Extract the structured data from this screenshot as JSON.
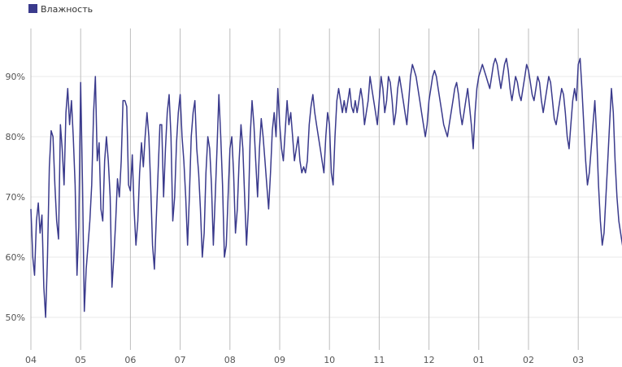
{
  "chart_data": {
    "type": "line",
    "legend": {
      "position": "top-left"
    },
    "grid": {
      "horizontal": true,
      "vertical": true
    },
    "x_ticks": [
      "04",
      "05",
      "06",
      "07",
      "08",
      "09",
      "10",
      "11",
      "12",
      "01",
      "02",
      "03"
    ],
    "ylim": [
      44,
      98
    ],
    "y_ticks": [
      50,
      60,
      70,
      80,
      90
    ],
    "y_tick_labels": [
      "50%",
      "60%",
      "70%",
      "80%",
      "90%"
    ],
    "series": [
      {
        "name": "Влажность",
        "color": "#3a3a8c",
        "x_range": [
          0,
          12.0
        ],
        "values": [
          68,
          60,
          57,
          66,
          69,
          64,
          67,
          55,
          50,
          60,
          75,
          81,
          80,
          72,
          66,
          63,
          82,
          78,
          72,
          84,
          88,
          82,
          86,
          80,
          72,
          57,
          65,
          89,
          72,
          51,
          58,
          62,
          66,
          72,
          84,
          90,
          76,
          79,
          68,
          66,
          76,
          80,
          76,
          70,
          55,
          60,
          66,
          73,
          70,
          76,
          86,
          86,
          85,
          72,
          71,
          77,
          68,
          62,
          66,
          74,
          79,
          75,
          80,
          84,
          80,
          72,
          62,
          58,
          66,
          74,
          82,
          82,
          70,
          78,
          84,
          87,
          80,
          66,
          70,
          79,
          84,
          87,
          80,
          76,
          70,
          62,
          70,
          80,
          84,
          86,
          78,
          74,
          68,
          60,
          64,
          74,
          80,
          78,
          72,
          62,
          70,
          78,
          87,
          80,
          72,
          60,
          62,
          70,
          78,
          80,
          74,
          64,
          68,
          76,
          82,
          78,
          70,
          62,
          68,
          80,
          86,
          82,
          76,
          70,
          78,
          83,
          80,
          76,
          72,
          68,
          74,
          81,
          84,
          80,
          88,
          82,
          78,
          76,
          81,
          86,
          82,
          84,
          80,
          76,
          78,
          80,
          76,
          74,
          75,
          74,
          76,
          82,
          85,
          87,
          84,
          82,
          80,
          78,
          76,
          74,
          80,
          84,
          82,
          74,
          72,
          80,
          86,
          88,
          86,
          84,
          86,
          84,
          86,
          88,
          85,
          84,
          86,
          84,
          86,
          88,
          86,
          82,
          84,
          86,
          90,
          88,
          86,
          84,
          82,
          86,
          90,
          88,
          84,
          86,
          90,
          89,
          86,
          82,
          84,
          88,
          90,
          88,
          86,
          84,
          82,
          86,
          90,
          92,
          91,
          90,
          88,
          86,
          84,
          82,
          80,
          82,
          86,
          88,
          90,
          91,
          90,
          88,
          86,
          84,
          82,
          81,
          80,
          82,
          84,
          86,
          88,
          89,
          87,
          84,
          82,
          84,
          86,
          88,
          85,
          82,
          78,
          84,
          88,
          90,
          91,
          92,
          91,
          90,
          89,
          88,
          90,
          92,
          93,
          92,
          90,
          88,
          90,
          92,
          93,
          91,
          88,
          86,
          88,
          90,
          89,
          87,
          86,
          88,
          90,
          92,
          91,
          89,
          87,
          86,
          88,
          90,
          89,
          86,
          84,
          86,
          88,
          90,
          89,
          86,
          83,
          82,
          84,
          86,
          88,
          87,
          84,
          80,
          78,
          82,
          86,
          88,
          86,
          92,
          93,
          88,
          82,
          76,
          72,
          74,
          78,
          82,
          86,
          80,
          72,
          66,
          62,
          64,
          70,
          76,
          82,
          88,
          84,
          76,
          70,
          66,
          64,
          62,
          60,
          61,
          60
        ]
      }
    ]
  }
}
